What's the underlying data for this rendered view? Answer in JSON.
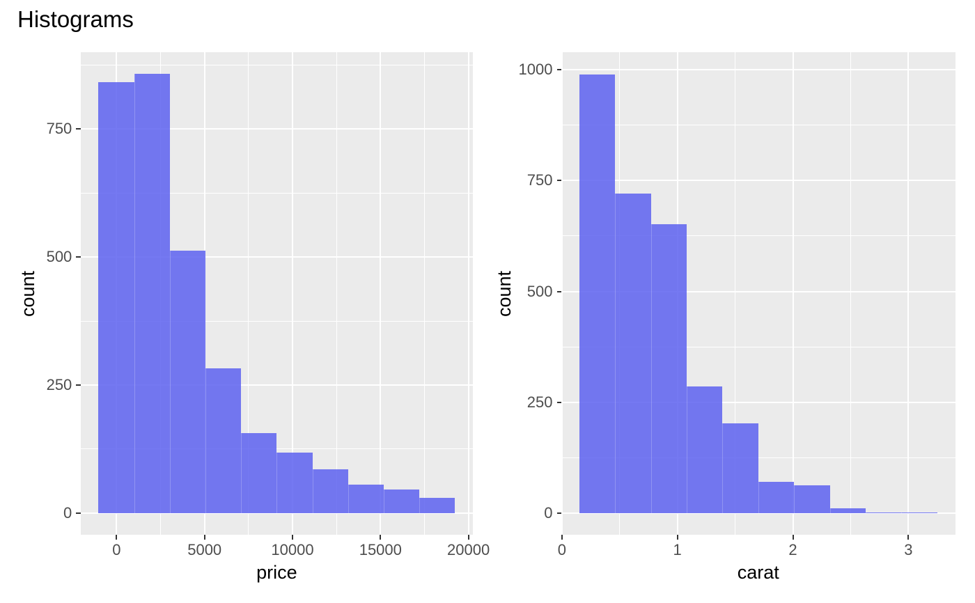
{
  "title": "Histograms",
  "colors": {
    "background": "#FFFFFF",
    "panel_background": "#EBEBEB",
    "grid": "#FFFFFF",
    "bar_fill": "rgba(93,97,240,0.85)",
    "bar_seam": "rgba(255,255,255,0.22)",
    "tick_label": "#4D4D4D",
    "axis_title": "#000000",
    "title_color": "#000000",
    "tick_mark": "#333333"
  },
  "chart_data": [
    {
      "type": "bar",
      "subtype": "histogram",
      "xlabel": "price",
      "ylabel": "count",
      "bin_start": -1030,
      "bin_width": 2027,
      "counts": [
        841,
        857,
        512,
        283,
        156,
        118,
        86,
        56,
        46,
        30
      ],
      "x_ticks": [
        0,
        5000,
        10000,
        15000,
        20000
      ],
      "x_tick_labels": [
        "0",
        "5000",
        "10000",
        "15000",
        "20000"
      ],
      "x_minor_ticks": [
        2500,
        7500,
        12500,
        17500
      ],
      "y_ticks": [
        0,
        250,
        500,
        750
      ],
      "y_tick_labels": [
        "0",
        "250",
        "500",
        "750"
      ],
      "y_minor_ticks": [
        125,
        375,
        625,
        875
      ],
      "x_domain": [
        -2043.5,
        20253.5
      ],
      "y_domain": [
        -42.8,
        899.8
      ],
      "grid": true,
      "legend": "none"
    },
    {
      "type": "bar",
      "subtype": "histogram",
      "xlabel": "carat",
      "ylabel": "count",
      "bin_start": 0.15,
      "bin_width": 0.31,
      "counts": [
        990,
        720,
        651,
        286,
        202,
        71,
        63,
        11,
        2,
        2
      ],
      "x_ticks": [
        0,
        1,
        2,
        3
      ],
      "x_tick_labels": [
        "0",
        "1",
        "2",
        "3"
      ],
      "x_minor_ticks": [
        0.5,
        1.5,
        2.5
      ],
      "y_ticks": [
        0,
        250,
        500,
        750,
        1000
      ],
      "y_tick_labels": [
        "0",
        "250",
        "500",
        "750",
        "1000"
      ],
      "y_minor_ticks": [
        125,
        375,
        625,
        875
      ],
      "x_domain": [
        -0.005,
        3.405
      ],
      "y_domain": [
        -49.5,
        1039.7
      ],
      "grid": true,
      "legend": "none"
    }
  ]
}
